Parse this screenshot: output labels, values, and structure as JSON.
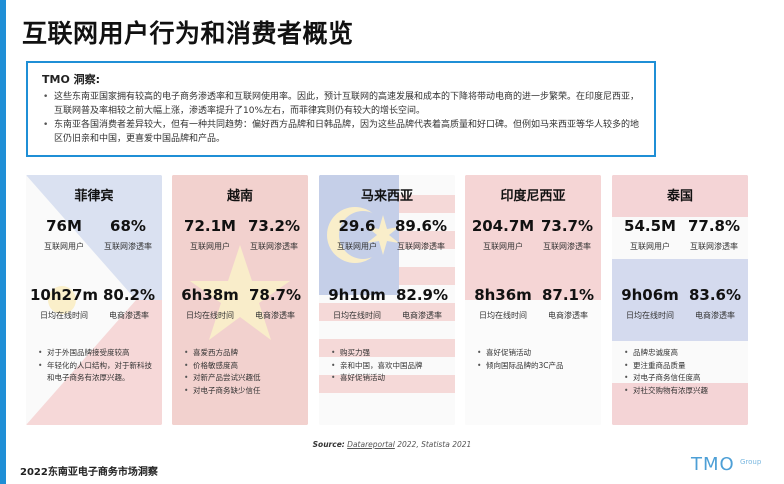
{
  "title": "互联网用户行为和消费者概览",
  "insight": {
    "heading": "TMO 洞察:",
    "bullets": [
      "这些东南亚国家拥有较高的电子商务渗透率和互联网使用率。因此，预计互联网的高速发展和成本的下降将带动电商的进一步繁荣。在印度尼西亚，互联网普及率相较之前大幅上涨，渗透率提升了10%左右，而菲律宾则仍有较大的增长空间。",
      "东南亚各国消费者差异较大，但有一种共同趋势：偏好西方品牌和日韩品牌，因为这些品牌代表着高质量和好口碑。但例如马来西亚等华人较多的地区仍旧亲和中国，更喜爱中国品牌和产品。"
    ]
  },
  "cards": [
    {
      "country": "菲律宾",
      "internet_users": "76M",
      "internet_users_label": "互联网用户",
      "internet_penetration": "68%",
      "internet_penetration_label": "互联网渗透率",
      "daily_online": "10h27m",
      "daily_online_label": "日均在线时间",
      "ecommerce_penetration": "80.2%",
      "ecommerce_penetration_label": "电商渗透率",
      "notes": [
        "对于外国品牌接受度较高",
        "年轻化的人口结构，对于新科技和电子商务有浓厚兴趣。"
      ]
    },
    {
      "country": "越南",
      "internet_users": "72.1M",
      "internet_users_label": "互联网用户",
      "internet_penetration": "73.2%",
      "internet_penetration_label": "互联网渗透率",
      "daily_online": "6h38m",
      "daily_online_label": "日均在线时间",
      "ecommerce_penetration": "78.7%",
      "ecommerce_penetration_label": "电商渗透率",
      "notes": [
        "喜爱西方品牌",
        "价格敏感度高",
        "对新产品尝试兴趣低",
        "对电子商务缺少信任"
      ]
    },
    {
      "country": "马来西亚",
      "internet_users": "29.6",
      "internet_users_label": "互联网用户",
      "internet_penetration": "89.6%",
      "internet_penetration_label": "互联网渗透率",
      "daily_online": "9h10m",
      "daily_online_label": "日均在线时间",
      "ecommerce_penetration": "82.9%",
      "ecommerce_penetration_label": "电商渗透率",
      "notes": [
        "购买力强",
        "亲和中国，喜欢中国品牌",
        "喜好促销活动"
      ]
    },
    {
      "country": "印度尼西亚",
      "internet_users": "204.7M",
      "internet_users_label": "互联网用户",
      "internet_penetration": "73.7%",
      "internet_penetration_label": "互联网渗透率",
      "daily_online": "8h36m",
      "daily_online_label": "日均在线时间",
      "ecommerce_penetration": "87.1%",
      "ecommerce_penetration_label": "电商渗透率",
      "notes": [
        "喜好促销活动",
        "倾向国际品牌的3C产品"
      ]
    },
    {
      "country": "泰国",
      "internet_users": "54.5M",
      "internet_users_label": "互联网用户",
      "internet_penetration": "77.8%",
      "internet_penetration_label": "互联网渗透率",
      "daily_online": "9h06m",
      "daily_online_label": "日均在线时间",
      "ecommerce_penetration": "83.6%",
      "ecommerce_penetration_label": "电商渗透率",
      "notes": [
        "品牌忠诚度高",
        "更注重商品质量",
        "对电子商务信任度高",
        "对社交购物有浓厚兴趣"
      ]
    }
  ],
  "source": {
    "label": "Source:",
    "link": "Datareportal",
    "rest": " 2022, Statista 2021"
  },
  "footer": "2022东南亚电子商务市场洞察",
  "logo": {
    "text": "TMO",
    "sub": "Group"
  },
  "colors": {
    "accent": "#1f8fd6",
    "philippines": [
      "#c9d4ea",
      "#f3c8c8"
    ],
    "vietnam": "#e8a8a0",
    "malaysia": [
      "#8fa6d6",
      "#f6e6a8",
      "#e8b0b0"
    ],
    "indonesia": [
      "#eeb0b0",
      "#f4f4f4"
    ],
    "thailand": [
      "#e9a9ac",
      "#f4f4f4",
      "#aab6dc"
    ]
  }
}
